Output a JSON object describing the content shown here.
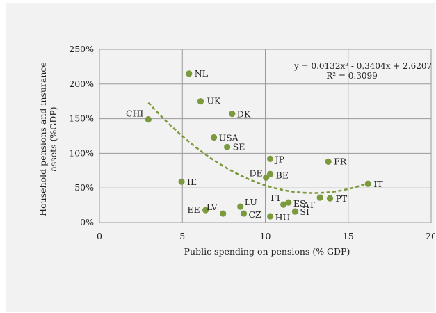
{
  "chart_data": {
    "type": "scatter",
    "xlabel": "Public spending on pensions (% GDP)",
    "ylabel": "Household pensions and insurance assets (%GDP)",
    "ylabel_lines": [
      "Household pensions and insurance",
      "assets (%GDP)"
    ],
    "xlim": [
      0,
      20
    ],
    "ylim": [
      0,
      250
    ],
    "x_ticks": [
      0,
      5,
      10,
      15,
      20
    ],
    "y_ticks": [
      0,
      50,
      100,
      150,
      200,
      250
    ],
    "y_tick_labels": [
      "0%",
      "50%",
      "100%",
      "150%",
      "200%",
      "250%"
    ],
    "grid": true,
    "point_color": "#7b9a3d",
    "trend_color": "#7b9a3d",
    "points": [
      {
        "label": "NL",
        "x": 5.4,
        "y": 215
      },
      {
        "label": "UK",
        "x": 6.1,
        "y": 175
      },
      {
        "label": "DK",
        "x": 8.0,
        "y": 157
      },
      {
        "label": "CHI",
        "x": 2.95,
        "y": 149
      },
      {
        "label": "USA",
        "x": 6.9,
        "y": 123
      },
      {
        "label": "SE",
        "x": 7.7,
        "y": 109
      },
      {
        "label": "JP",
        "x": 10.3,
        "y": 92
      },
      {
        "label": "FR",
        "x": 13.8,
        "y": 88
      },
      {
        "label": "DE",
        "x": 10.05,
        "y": 65
      },
      {
        "label": "BE",
        "x": 10.3,
        "y": 70
      },
      {
        "label": "IE",
        "x": 4.95,
        "y": 59
      },
      {
        "label": "IT",
        "x": 16.2,
        "y": 56
      },
      {
        "label": "FI",
        "x": 11.1,
        "y": 26
      },
      {
        "label": "ES",
        "x": 11.4,
        "y": 29
      },
      {
        "label": "AT",
        "x": 13.3,
        "y": 36
      },
      {
        "label": "PT",
        "x": 13.9,
        "y": 35
      },
      {
        "label": "SI",
        "x": 11.8,
        "y": 16
      },
      {
        "label": "LU",
        "x": 8.5,
        "y": 23
      },
      {
        "label": "LV",
        "x": 7.45,
        "y": 13
      },
      {
        "label": "EE",
        "x": 6.4,
        "y": 18
      },
      {
        "label": "CZ",
        "x": 8.7,
        "y": 13
      },
      {
        "label": "HU",
        "x": 10.3,
        "y": 9
      }
    ],
    "trendline": {
      "type": "polynomial",
      "coefficients": [
        0.0132,
        -0.3404,
        2.6207
      ],
      "x_range": [
        2.95,
        16.2
      ],
      "equation_text": "y = 0.0132x² - 0.3404x + 2.6207",
      "r2_text": "R² = 0.3099"
    }
  }
}
